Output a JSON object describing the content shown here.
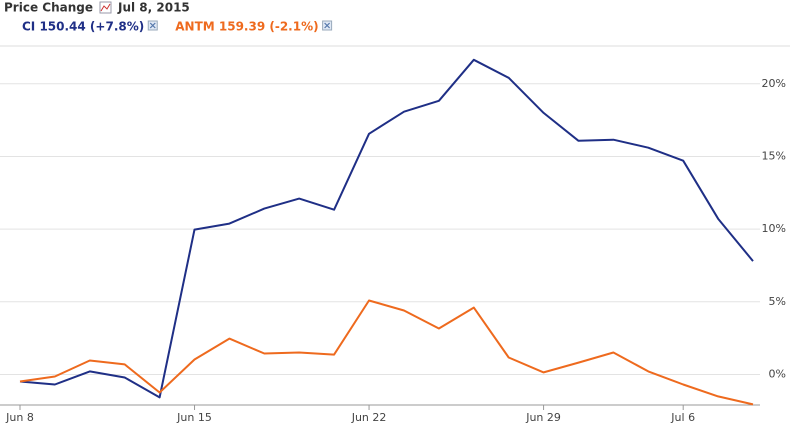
{
  "chart_data": {
    "type": "line",
    "title": "Price Change",
    "date": "Jul 8, 2015",
    "categories": [
      "Jun 8",
      null,
      null,
      null,
      null,
      "Jun 15",
      null,
      null,
      null,
      null,
      "Jun 22",
      null,
      null,
      null,
      null,
      "Jun 29",
      null,
      null,
      null,
      "Jul 6",
      null,
      null
    ],
    "series": [
      {
        "name": "CI 150.44 (+7.8%)",
        "color": "#1f2f86",
        "values": [
          -0.48,
          -0.69,
          0.21,
          -0.21,
          -1.58,
          9.97,
          10.38,
          11.41,
          12.1,
          11.34,
          16.56,
          18.08,
          18.83,
          21.65,
          20.41,
          18.0,
          16.08,
          16.15,
          15.6,
          14.71,
          10.72,
          7.8
        ]
      },
      {
        "name": "ANTM 159.39 (-2.1%)",
        "color": "#ee6a1e",
        "values": [
          -0.48,
          -0.14,
          0.96,
          0.69,
          -1.24,
          1.03,
          2.47,
          1.44,
          1.51,
          1.37,
          5.09,
          4.4,
          3.16,
          4.6,
          1.17,
          0.14,
          0.82,
          1.51,
          0.21,
          -0.69,
          -1.51,
          -2.06
        ]
      }
    ],
    "ylim": [
      -2.1,
      22.6
    ],
    "yticks": [
      {
        "value": 0,
        "label": "0%"
      },
      {
        "value": 5,
        "label": "5%"
      },
      {
        "value": 10,
        "label": "10%"
      },
      {
        "value": 15,
        "label": "15%"
      },
      {
        "value": 20,
        "label": "20%"
      }
    ],
    "grid": true
  }
}
